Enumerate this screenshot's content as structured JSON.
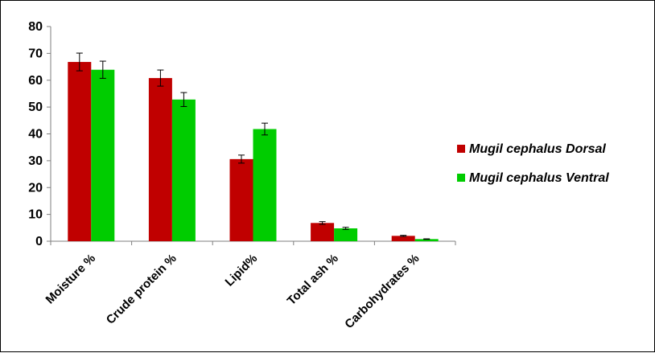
{
  "chart_data": {
    "type": "bar",
    "title": "",
    "xlabel": "",
    "ylabel": "",
    "categories": [
      "Moisture %",
      "Crude protein %",
      "Lipid%",
      "Total ash %",
      "Carbohydrates %"
    ],
    "series": [
      {
        "name": "Mugil cephalus Dorsal",
        "color": "#c00000",
        "values": [
          66.8,
          60.8,
          30.6,
          6.8,
          2.0
        ],
        "errors": [
          3.3,
          3.0,
          1.5,
          0.5,
          0.2
        ]
      },
      {
        "name": "Mugil cephalus Ventral",
        "color": "#00cc00",
        "values": [
          63.9,
          52.8,
          41.8,
          4.8,
          0.8
        ],
        "errors": [
          3.2,
          2.6,
          2.2,
          0.4,
          0.1
        ]
      }
    ],
    "ylim": [
      0,
      80
    ],
    "yticks": [
      0,
      10,
      20,
      30,
      40,
      50,
      60,
      70,
      80
    ],
    "grid": false,
    "legend_position": "right",
    "error_bars": true
  }
}
